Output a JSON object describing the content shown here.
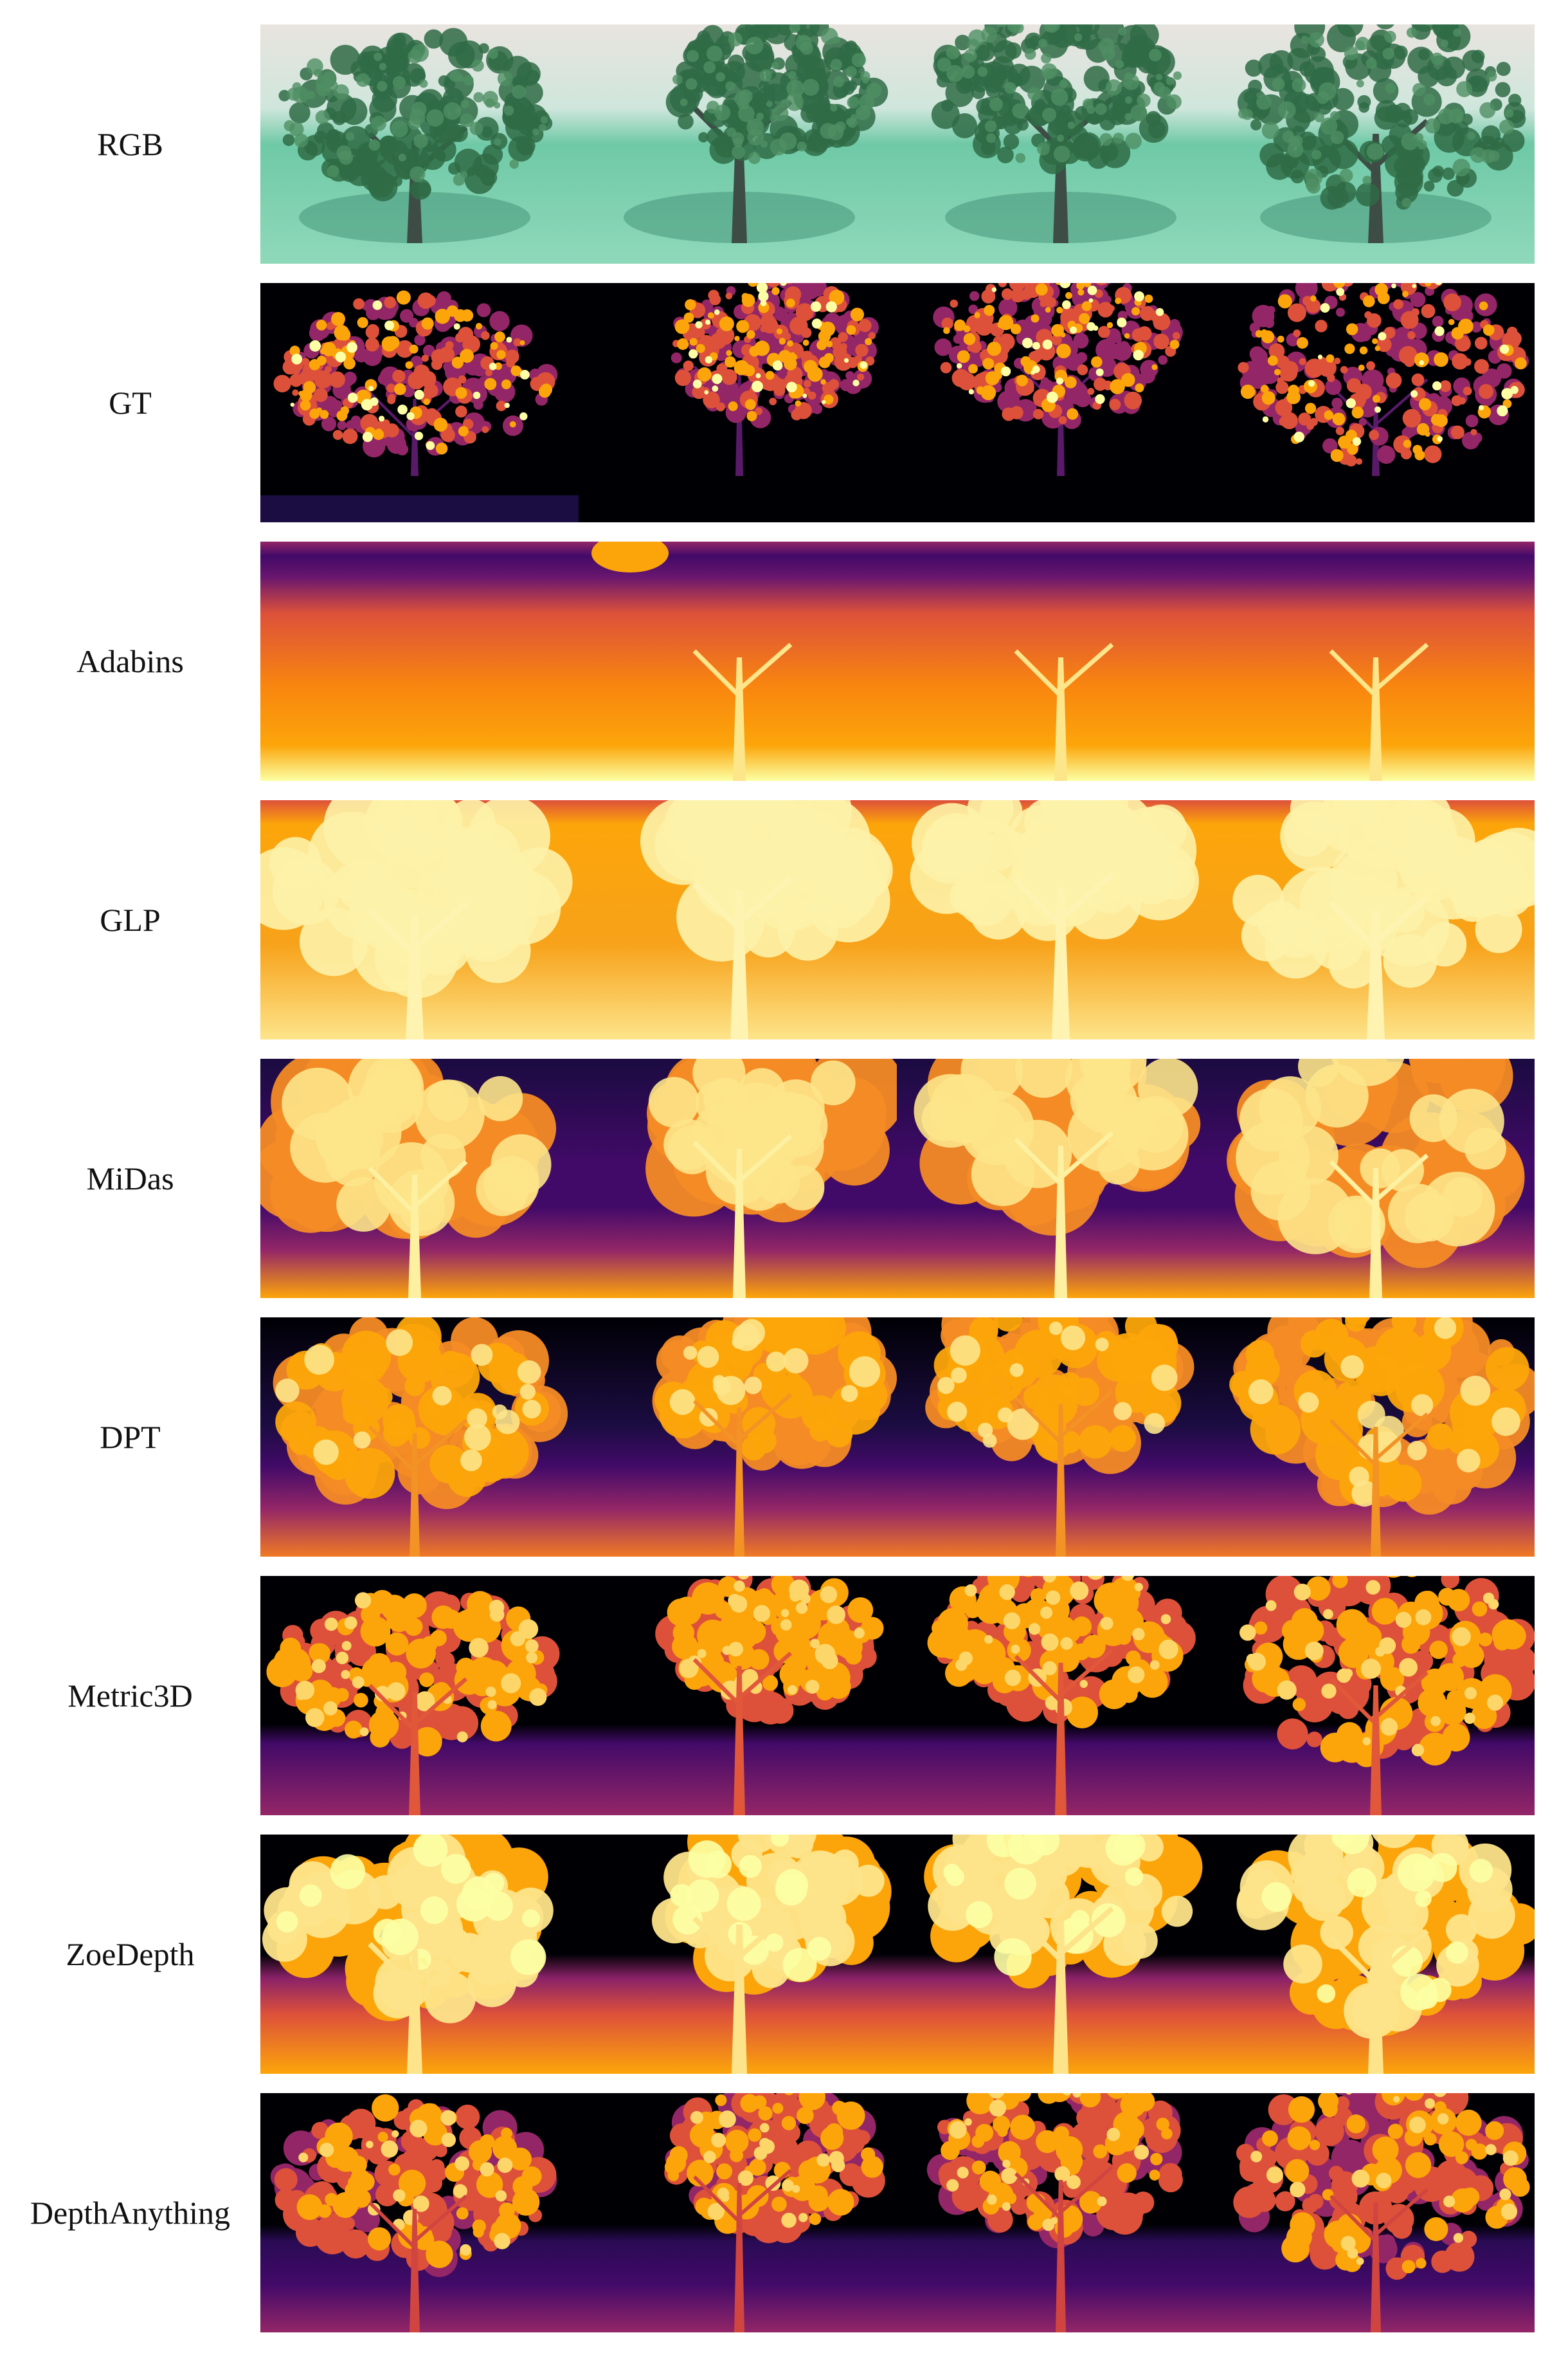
{
  "rows": [
    {
      "label": "RGB",
      "kind": "rgb"
    },
    {
      "label": "GT",
      "kind": "gt"
    },
    {
      "label": "Adabins",
      "kind": "adabins"
    },
    {
      "label": "GLP",
      "kind": "glp"
    },
    {
      "label": "MiDas",
      "kind": "midas"
    },
    {
      "label": "DPT",
      "kind": "dpt"
    },
    {
      "label": "Metric3D",
      "kind": "metric3d"
    },
    {
      "label": "ZoeDepth",
      "kind": "zoedepth"
    },
    {
      "label": "DepthAnything",
      "kind": "depthanything"
    }
  ],
  "colors": {
    "inferno_dark": "#000004",
    "inferno_purple": "#420a68",
    "inferno_magenta": "#932667",
    "inferno_orange": "#dd513a",
    "inferno_amber": "#fca50a",
    "inferno_yellow": "#fcffa4",
    "rgb_grass": "#6fc9a6",
    "rgb_foliage": "#2f6b45",
    "rgb_sky": "#e9e4df"
  }
}
